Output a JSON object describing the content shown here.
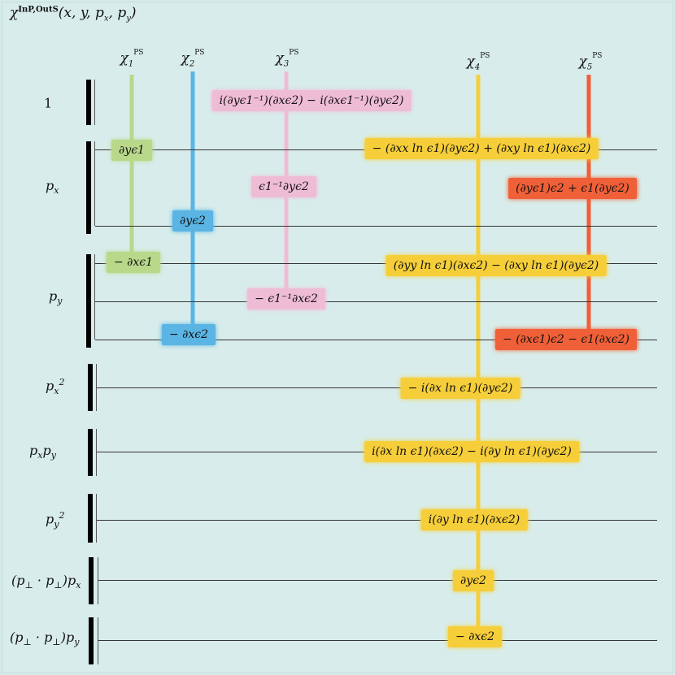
{
  "title": {
    "base": "χ",
    "sup": "InP,OutS",
    "args": "(x, y, p",
    "args_x": "x",
    "args_mid": ", p",
    "args_y": "y",
    "args_end": ")"
  },
  "columns": [
    {
      "label": "χ",
      "sub": "1",
      "sup": "PS",
      "color": "#b9d88a"
    },
    {
      "label": "χ",
      "sub": "2",
      "sup": "PS",
      "color": "#5ab5e4"
    },
    {
      "label": "χ",
      "sub": "3",
      "sup": "PS",
      "color": "#efbcd6"
    },
    {
      "label": "χ",
      "sub": "4",
      "sup": "PS",
      "color": "#f6ce3a"
    },
    {
      "label": "χ",
      "sub": "5",
      "sup": "PS",
      "color": "#f06038"
    }
  ],
  "rows": [
    {
      "label": "1"
    },
    {
      "label": "pₓ"
    },
    {
      "label": "p_y"
    },
    {
      "label": "pₓ²"
    },
    {
      "label": "pₓp_y"
    },
    {
      "label": "p_y²"
    },
    {
      "label": "(p⊥ · p⊥)pₓ"
    },
    {
      "label": "(p⊥ · p⊥)p_y"
    }
  ],
  "terms": {
    "r1_c3": "i(∂yϵ1⁻¹)(∂xϵ2) − i(∂xϵ1⁻¹)(∂yϵ2)",
    "px_a_c1": "∂yϵ1",
    "px_a_c4": "− (∂xx ln ϵ1)(∂yϵ2) + (∂xy ln ϵ1)(∂xϵ2)",
    "px_b_c3": "ϵ1⁻¹∂yϵ2",
    "px_b_c5": "(∂yϵ1)ϵ2 + ϵ1(∂yϵ2)",
    "px_c_c2": "∂yϵ2",
    "py_a_c1": "− ∂xϵ1",
    "py_a_c4": "(∂yy ln ϵ1)(∂xϵ2) − (∂xy ln ϵ1)(∂yϵ2)",
    "py_b_c3": "− ϵ1⁻¹∂xϵ2",
    "py_c_c2": "− ∂xϵ2",
    "py_c_c5": "− (∂xϵ1)ϵ2 − ϵ1(∂xϵ2)",
    "px2_c4": "− i(∂x ln ϵ1)(∂yϵ2)",
    "pxpy_c4": "i(∂x ln ϵ1)(∂xϵ2) − i(∂y ln ϵ1)(∂yϵ2)",
    "py2_c4": "i(∂y ln ϵ1)(∂xϵ2)",
    "ppx_c4": "∂yϵ2",
    "ppy_c4": "− ∂xϵ2"
  }
}
